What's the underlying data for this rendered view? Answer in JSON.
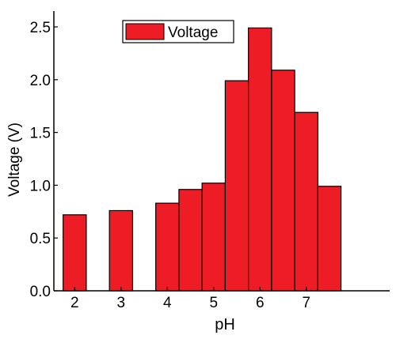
{
  "chart_data": {
    "type": "bar",
    "xlabel": "pH",
    "ylabel": "Voltage (V)",
    "xlim": [
      1.55,
      8.8
    ],
    "ylim": [
      0,
      2.65
    ],
    "x_ticks": [
      2,
      3,
      4,
      5,
      6,
      7
    ],
    "y_ticks": [
      0.0,
      0.5,
      1.0,
      1.5,
      2.0,
      2.5
    ],
    "y_tick_labels": [
      "0.0",
      "0.5",
      "1.0",
      "1.5",
      "2.0",
      "2.5"
    ],
    "bar_width": 0.5,
    "grid": false,
    "legend_position": "top-center",
    "series": [
      {
        "name": "Voltage",
        "color": "#ee1c25",
        "points": [
          {
            "x": 2.0,
            "y": 0.72
          },
          {
            "x": 3.0,
            "y": 0.76
          },
          {
            "x": 4.0,
            "y": 0.83
          },
          {
            "x": 4.5,
            "y": 0.96
          },
          {
            "x": 5.0,
            "y": 1.02
          },
          {
            "x": 5.5,
            "y": 1.99
          },
          {
            "x": 6.0,
            "y": 2.49
          },
          {
            "x": 6.5,
            "y": 2.09
          },
          {
            "x": 7.0,
            "y": 1.69
          },
          {
            "x": 7.5,
            "y": 0.99
          }
        ]
      }
    ]
  }
}
